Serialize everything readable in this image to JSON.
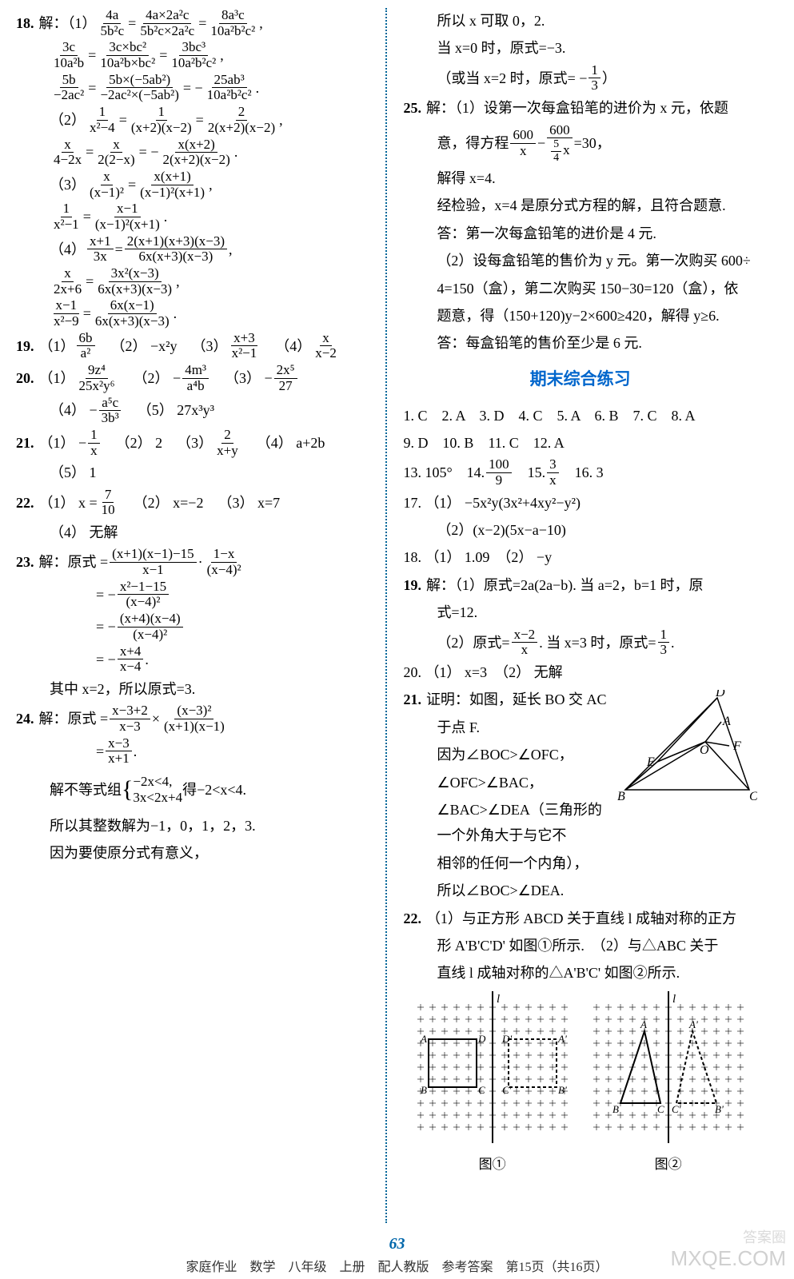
{
  "footer": "家庭作业　数学　八年级　上册　配人教版　参考答案　第15页（共16页）",
  "page_num": "63",
  "watermark_main": "答案圈",
  "watermark_url": "MXQE.COM",
  "section_title": "期末综合练习",
  "fig_label_1": "图①",
  "fig_label_2": "图②",
  "colors": {
    "accent": "#0066cc",
    "divider": "#006699",
    "text": "#000000",
    "bg": "#ffffff"
  },
  "left": {
    "p18_label": "18.",
    "p18_intro": "解：（1）",
    "p18_1a": "4a",
    "p18_1b": "5b²c",
    "p18_1c": "4a×2a²c",
    "p18_1d": "5b²c×2a²c",
    "p18_1e": "8a³c",
    "p18_1f": "10a²b²c²",
    "p18_2a": "3c",
    "p18_2b": "10a²b",
    "p18_2c": "3c×bc²",
    "p18_2d": "10a²b×bc²",
    "p18_2e": "3bc³",
    "p18_2f": "10a²b²c²",
    "p18_3a": "5b",
    "p18_3b": "−2ac²",
    "p18_3c": "5b×(−5ab²)",
    "p18_3d": "−2ac²×(−5ab²)",
    "p18_3e": "25ab³",
    "p18_3f": "10a²b²c²",
    "p18_3sign": "= −",
    "p18_sub2": "（2）",
    "p18_4a": "1",
    "p18_4b": "x²−4",
    "p18_4c": "1",
    "p18_4d": "(x+2)(x−2)",
    "p18_4e": "2",
    "p18_4f": "2(x+2)(x−2)",
    "p18_5a": "x",
    "p18_5b": "4−2x",
    "p18_5c": "x",
    "p18_5d": "2(2−x)",
    "p18_5e": "x(x+2)",
    "p18_5f": "2(x+2)(x−2)",
    "p18_5sign": "= −",
    "p18_sub3": "（3）",
    "p18_6a": "x",
    "p18_6b": "(x−1)²",
    "p18_6c": "x(x+1)",
    "p18_6d": "(x−1)²(x+1)",
    "p18_7a": "1",
    "p18_7b": "x²−1",
    "p18_7c": "x−1",
    "p18_7d": "(x−1)²(x+1)",
    "p18_sub4": "（4）",
    "p18_8a": "x+1",
    "p18_8b": "3x",
    "p18_8c": "2(x+1)(x+3)(x−3)",
    "p18_8d": "6x(x+3)(x−3)",
    "p18_9a": "x",
    "p18_9b": "2x+6",
    "p18_9c": "3x²(x−3)",
    "p18_9d": "6x(x+3)(x−3)",
    "p18_10a": "x−1",
    "p18_10b": "x²−9",
    "p18_10c": "6x(x−1)",
    "p18_10d": "6x(x+3)(x−3)",
    "p19_label": "19.",
    "p19_1": "（1）",
    "p19_1a": "6b",
    "p19_1b": "a²",
    "p19_2": "（2） −x²y",
    "p19_3": "（3）",
    "p19_3a": "x+3",
    "p19_3b": "x²−1",
    "p19_4": "（4）",
    "p19_4a": "x",
    "p19_4b": "x−2",
    "p20_label": "20.",
    "p20_1": "（1）",
    "p20_1a": "9z⁴",
    "p20_1b": "25x²y⁶",
    "p20_2": "（2） −",
    "p20_2a": "4m³",
    "p20_2b": "a⁴b",
    "p20_3": "（3） −",
    "p20_3a": "2x⁵",
    "p20_3b": "27",
    "p20_4": "（4） −",
    "p20_4a": "a⁵c",
    "p20_4b": "3b³",
    "p20_5": "（5） 27x³y³",
    "p21_label": "21.",
    "p21_1": "（1） −",
    "p21_1a": "1",
    "p21_1b": "x",
    "p21_2": "（2） 2",
    "p21_3": "（3）",
    "p21_3a": "2",
    "p21_3b": "x+y",
    "p21_4": "（4） a+2b",
    "p21_5": "（5） 1",
    "p22_label": "22.",
    "p22_1": "（1） x =",
    "p22_1a": "7",
    "p22_1b": "10",
    "p22_2": "（2） x=−2",
    "p22_3": "（3） x=7",
    "p22_4": "（4） 无解",
    "p23_label": "23.",
    "p23_intro": "解：原式 =",
    "p23_1a": "(x+1)(x−1)−15",
    "p23_1b": "x−1",
    "p23_mid": "·",
    "p23_1c": "1−x",
    "p23_1d": "(x−4)²",
    "p23_2": "= −",
    "p23_2a": "x²−1−15",
    "p23_2b": "(x−4)²",
    "p23_3": "= −",
    "p23_3a": "(x+4)(x−4)",
    "p23_3b": "(x−4)²",
    "p23_4": "= −",
    "p23_4a": "x+4",
    "p23_4b": "x−4",
    "p23_end": "其中 x=2，所以原式=3.",
    "p24_label": "24.",
    "p24_intro": "解：原式 =",
    "p24_1a": "x−3+2",
    "p24_1b": "x−3",
    "p24_mid": "×",
    "p24_1c": "(x−3)²",
    "p24_1d": "(x+1)(x−1)",
    "p24_2": "=",
    "p24_2a": "x−3",
    "p24_2b": "x+1",
    "p24_sys": "解不等式组",
    "p24_sys1": "−2x<4,",
    "p24_sys2": "3x<2x+4",
    "p24_sys_r": "得−2<x<4.",
    "p24_int": "所以其整数解为−1，0，1，2，3.",
    "p24_cond": "因为要使原分式有意义，"
  },
  "right": {
    "r1": "所以 x 可取 0，2.",
    "r2": "当 x=0 时，原式=−3.",
    "r3_pre": "（或当 x=2 时，原式= −",
    "r3a": "1",
    "r3b": "3",
    "r3_post": "）",
    "p25_label": "25.",
    "p25_1": "解：（1）设第一次每盒铅笔的进价为 x 元，依题",
    "p25_2": "意，得方程",
    "p25_2a": "600",
    "p25_2b": "x",
    "p25_2mid": "−",
    "p25_2c": "600",
    "p25_2d_top": "5",
    "p25_2d_bot": "4",
    "p25_2d_x": "x",
    "p25_2r": "=30，",
    "p25_3": "解得 x=4.",
    "p25_4": "经检验，x=4 是原分式方程的解，且符合题意.",
    "p25_5": "答：第一次每盒铅笔的进价是 4 元.",
    "p25_6": "（2）设每盒铅笔的售价为 y 元。第一次购买 600÷",
    "p25_7": "4=150（盒），第二次购买 150−30=120（盒），依",
    "p25_8": "题意，得（150+120)y−2×600≥420，解得 y≥6.",
    "p25_9": "答：每盒铅笔的售价至少是 6 元.",
    "mc": "1. C　2. A　3. D　4. C　5. A　6. B　7. C　8. A",
    "mc2": "9. D　10. B　11. C　12. A",
    "q13": "13. 105°　14.",
    "q14a": "100",
    "q14b": "9",
    "q15": "15.",
    "q15a": "3",
    "q15b": "x",
    "q16": "16. 3",
    "q17_1": "17. （1） −5x²y(3x²+4xy²−y²)",
    "q17_2": "（2）(x−2)(5x−a−10)",
    "q18": "18. （1） 1.09　（2） −y",
    "q19_label": "19.",
    "q19_1": "解：（1）原式=2a(2a−b). 当 a=2，b=1 时，原",
    "q19_1b": "式=12.",
    "q19_2": "（2）原式=",
    "q19_2a": "x−2",
    "q19_2b": "x",
    "q19_2m": ". 当 x=3 时，原式=",
    "q19_2c": "1",
    "q19_2d": "3",
    "q19_2e": ".",
    "q20": "20. （1） x=3　（2） 无解",
    "q21_label": "21.",
    "q21_1": "证明：如图，延长 BO 交 AC",
    "q21_2": "于点 F.",
    "q21_3": "因为∠BOC>∠OFC，",
    "q21_4": "∠OFC>∠BAC，",
    "q21_5": "∠BAC>∠DEA（三角形的一个外角大于与它不",
    "q21_6": "相邻的任何一个内角），",
    "q21_7": "所以∠BOC>∠DEA.",
    "q22_label": "22.",
    "q22_1": "（1）与正方形 ABCD 关于直线 l 成轴对称的正方",
    "q22_2": "形 A'B'C'D' 如图①所示.　（2）与△ABC 关于",
    "q22_3": "直线 l 成轴对称的△A'B'C' 如图②所示."
  },
  "diagram_labels": {
    "A": "A",
    "B": "B",
    "C": "C",
    "D": "D",
    "E": "E",
    "F": "F",
    "O": "O",
    "l": "l",
    "Ap": "A'",
    "Bp": "B'",
    "Cp": "C'",
    "Dp": "D'"
  }
}
